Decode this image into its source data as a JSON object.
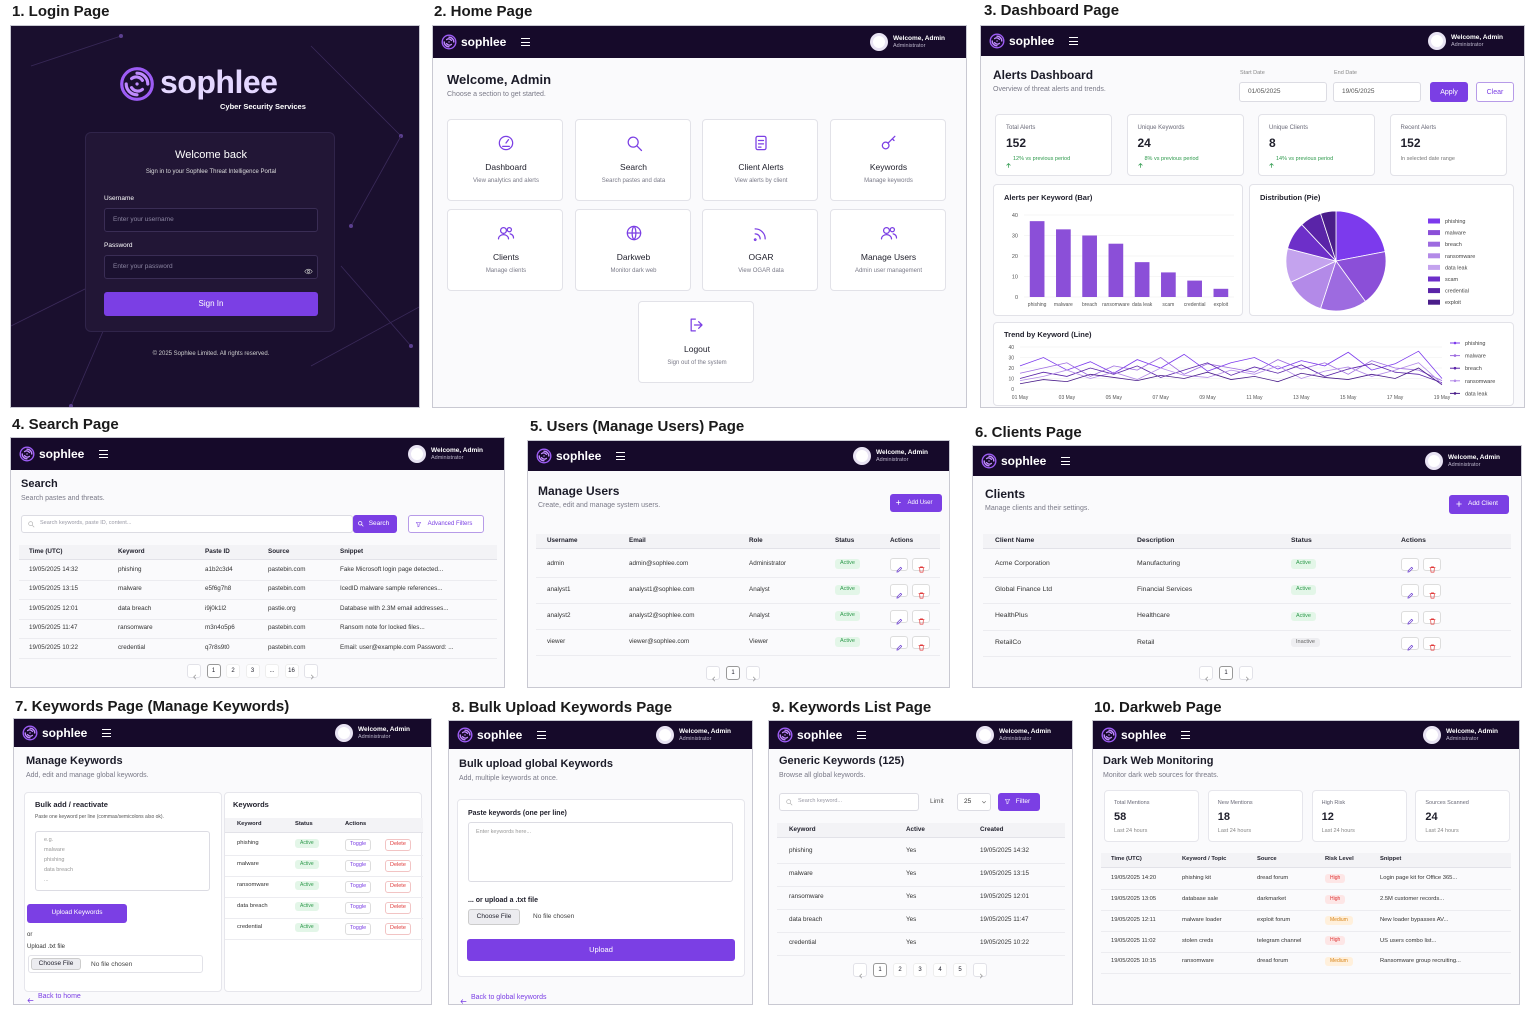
{
  "app_header": {
    "brand": "sophlee",
    "user": "Welcome, Admin",
    "role": "Administrator"
  },
  "badge_colors": {
    "Active": "green",
    "Inactive": "gray",
    "High": "red",
    "Medium": "orange"
  },
  "login": {
    "caption": "1. Login Page",
    "brand": "sophlee",
    "tagline": "Cyber Security Services",
    "title": "Welcome back",
    "subtitle": "Sign in to your Sophlee Threat Intelligence Portal",
    "username_label": "Username",
    "username_placeholder": "Enter your username",
    "password_label": "Password",
    "password_placeholder": "Enter your password",
    "button": "Sign In",
    "footer": "© 2025 Sophlee Limited. All rights reserved."
  },
  "home": {
    "caption": "2. Home Page",
    "title": "Welcome, Admin",
    "subtitle": "Choose a section to get started.",
    "cards": [
      {
        "title": "Dashboard",
        "desc": "View analytics and alerts"
      },
      {
        "title": "Search",
        "desc": "Search pastes and data"
      },
      {
        "title": "Client Alerts",
        "desc": "View alerts by client"
      },
      {
        "title": "Keywords",
        "desc": "Manage keywords"
      },
      {
        "title": "Clients",
        "desc": "Manage clients"
      },
      {
        "title": "Darkweb",
        "desc": "Monitor dark web"
      },
      {
        "title": "OGAR",
        "desc": "View OGAR data"
      },
      {
        "title": "Manage Users",
        "desc": "Admin user management"
      },
      {
        "title": "Logout",
        "desc": "Sign out of the system"
      }
    ]
  },
  "dashboard": {
    "caption": "3. Dashboard Page",
    "title": "Alerts Dashboard",
    "subtitle": "Overview of threat alerts and trends.",
    "start_label": "Start Date",
    "start_value": "01/05/2025",
    "end_label": "End Date",
    "end_value": "19/05/2025",
    "apply": "Apply",
    "clear": "Clear",
    "stats": [
      {
        "label": "Total Alerts",
        "value": 152,
        "note": "12% vs previous period",
        "trend": "up"
      },
      {
        "label": "Unique Keywords",
        "value": 24,
        "note": "8% vs previous period",
        "trend": "up"
      },
      {
        "label": "Unique Clients",
        "value": 8,
        "note": "14% vs previous period",
        "trend": "up"
      },
      {
        "label": "Recent Alerts",
        "value": 152,
        "note": "In selected date range"
      }
    ],
    "bar_chart": {
      "type": "bar",
      "title": "Alerts per Keyword (Bar)",
      "categories": [
        "phishing",
        "malware",
        "breach",
        "ransomware",
        "data leak",
        "scam",
        "credential",
        "exploit"
      ],
      "values": [
        37,
        33,
        30,
        26,
        17,
        12,
        8,
        4
      ],
      "color": "#8b4fd8",
      "ylim": [
        0,
        40
      ],
      "yticks": [
        0,
        10,
        20,
        30,
        40
      ],
      "grid": true
    },
    "pie_chart": {
      "type": "pie",
      "title": "Distribution (Pie)",
      "categories": [
        "phishing",
        "malware",
        "breach",
        "ransomware",
        "data leak",
        "scam",
        "credential",
        "exploit"
      ],
      "values": [
        22,
        18,
        15,
        13,
        11,
        9,
        7,
        5
      ],
      "colors": [
        "#7c3aed",
        "#8b4fd8",
        "#9d6be0",
        "#b38ae8",
        "#c4a3ee",
        "#6d2fc9",
        "#5a24a8",
        "#4a1d8a"
      ],
      "legend": "right"
    },
    "line_chart": {
      "type": "line",
      "title": "Trend by Keyword (Line)",
      "categories": [
        "01 May",
        null,
        "03 May",
        null,
        "05 May",
        null,
        "07 May",
        null,
        "09 May",
        null,
        "11 May",
        null,
        "13 May",
        null,
        "15 May",
        null,
        "17 May",
        null,
        "19 May"
      ],
      "ylim": [
        0,
        40
      ],
      "yticks": [
        0,
        10,
        20,
        30,
        40
      ],
      "grid": true,
      "legend": "right",
      "series": [
        {
          "name": "phishing",
          "color": "#7c3aed",
          "values": [
            22,
            30,
            18,
            26,
            15,
            28,
            20,
            33,
            17,
            25,
            30,
            19,
            27,
            22,
            35,
            18,
            24,
            36,
            10
          ]
        },
        {
          "name": "malware",
          "color": "#9d6be0",
          "values": [
            15,
            20,
            25,
            12,
            22,
            18,
            30,
            14,
            24,
            20,
            16,
            28,
            19,
            25,
            14,
            27,
            20,
            18,
            8
          ]
        },
        {
          "name": "breach",
          "color": "#5a24a8",
          "values": [
            10,
            16,
            12,
            20,
            14,
            22,
            11,
            18,
            25,
            13,
            21,
            15,
            23,
            12,
            19,
            24,
            16,
            14,
            6
          ]
        },
        {
          "name": "ransomware",
          "color": "#b38ae8",
          "values": [
            8,
            12,
            18,
            10,
            16,
            9,
            20,
            13,
            11,
            18,
            14,
            22,
            10,
            17,
            21,
            12,
            18,
            25,
            5
          ]
        },
        {
          "name": "data leak",
          "color": "#4a1d8a",
          "values": [
            5,
            9,
            7,
            14,
            11,
            8,
            13,
            10,
            16,
            9,
            12,
            7,
            15,
            11,
            9,
            14,
            10,
            20,
            4
          ]
        }
      ]
    }
  },
  "search": {
    "caption": "4. Search Page",
    "title": "Search",
    "subtitle": "Search pastes and threats.",
    "placeholder": "Search keywords, paste ID, content...",
    "button": "Search",
    "filters": "Advanced Filters",
    "columns": [
      "Time (UTC)",
      "Keyword",
      "Paste ID",
      "Source",
      "Snippet"
    ],
    "rows": [
      [
        "19/05/2025 14:32",
        "phishing",
        "a1b2c3d4",
        "pastebin.com",
        "Fake Microsoft login page detected..."
      ],
      [
        "19/05/2025 13:15",
        "malware",
        "e5f6g7h8",
        "pastebin.com",
        "IcedID malware sample references..."
      ],
      [
        "19/05/2025 12:01",
        "data breach",
        "i9j0k1l2",
        "pastie.org",
        "Database with 2.3M email addresses..."
      ],
      [
        "19/05/2025 11:47",
        "ransomware",
        "m3n4o5p6",
        "pastebin.com",
        "Ransom note for locked files..."
      ],
      [
        "19/05/2025 10:22",
        "credential",
        "q7r8s9t0",
        "pastebin.com",
        "Email: user@example.com Password: ..."
      ]
    ],
    "pages": [
      "1",
      "2",
      "3",
      "...",
      "16"
    ]
  },
  "users": {
    "caption": "5. Users (Manage Users) Page",
    "title": "Manage Users",
    "subtitle": "Create, edit and manage system users.",
    "add": "Add User",
    "columns": [
      "Username",
      "Email",
      "Role",
      "Status",
      "Actions"
    ],
    "rows": [
      [
        "admin",
        "admin@sophlee.com",
        "Administrator",
        "Active"
      ],
      [
        "analyst1",
        "analyst1@sophlee.com",
        "Analyst",
        "Active"
      ],
      [
        "analyst2",
        "analyst2@sophlee.com",
        "Analyst",
        "Active"
      ],
      [
        "viewer",
        "viewer@sophlee.com",
        "Viewer",
        "Active"
      ]
    ],
    "pages": [
      "1"
    ]
  },
  "clients": {
    "caption": "6. Clients Page",
    "title": "Clients",
    "subtitle": "Manage clients and their settings.",
    "add": "Add Client",
    "columns": [
      "Client Name",
      "Description",
      "Status",
      "Actions"
    ],
    "rows": [
      [
        "Acme Corporation",
        "Manufacturing",
        "Active"
      ],
      [
        "Global Finance Ltd",
        "Financial Services",
        "Active"
      ],
      [
        "HealthPlus",
        "Healthcare",
        "Active"
      ],
      [
        "RetailCo",
        "Retail",
        "Inactive"
      ]
    ],
    "pages": [
      "1"
    ]
  },
  "keywords": {
    "caption": "7. Keywords Page (Manage Keywords)",
    "title": "Manage Keywords",
    "subtitle": "Add, edit and manage global keywords.",
    "bulk_title": "Bulk add / reactivate",
    "bulk_hint": "Paste one keyword per line (commas/semicolons also ok).",
    "placeholder_lines": [
      "e.g.",
      "malware",
      "phishing",
      "data breach",
      "..."
    ],
    "upload_button": "Upload Keywords",
    "or": "or",
    "file_label": "Upload .txt file",
    "choose": "Choose File",
    "no_file": "No file chosen",
    "back": "Back to home",
    "list_title": "Keywords",
    "columns": [
      "Keyword",
      "Status",
      "Actions"
    ],
    "toggle": "Toggle",
    "delete": "Delete",
    "rows": [
      [
        "phishing",
        "Active"
      ],
      [
        "malware",
        "Active"
      ],
      [
        "ransomware",
        "Active"
      ],
      [
        "data breach",
        "Active"
      ],
      [
        "credential",
        "Active"
      ]
    ]
  },
  "bulk": {
    "caption": "8. Bulk Upload Keywords Page",
    "title": "Bulk upload global Keywords",
    "subtitle": "Add, multiple keywords at once.",
    "label": "Paste keywords (one per line)",
    "placeholder": "Enter keywords here...",
    "or_upload": "... or upload a .txt file",
    "choose": "Choose File",
    "no_file": "No file chosen",
    "button": "Upload",
    "back": "Back to global keywords"
  },
  "keyword_list": {
    "caption": "9. Keywords List Page",
    "title": "Generic Keywords (125)",
    "subtitle": "Browse all global keywords.",
    "placeholder": "Search keyword...",
    "limit_label": "Limit",
    "limit_value": "25",
    "filter": "Filter",
    "columns": [
      "Keyword",
      "Active",
      "Created"
    ],
    "rows": [
      [
        "phishing",
        "Yes",
        "19/05/2025 14:32"
      ],
      [
        "malware",
        "Yes",
        "19/05/2025 13:15"
      ],
      [
        "ransomware",
        "Yes",
        "19/05/2025 12:01"
      ],
      [
        "data breach",
        "Yes",
        "19/05/2025 11:47"
      ],
      [
        "credential",
        "Yes",
        "19/05/2025 10:22"
      ]
    ],
    "pages": [
      "1",
      "2",
      "3",
      "4",
      "5"
    ]
  },
  "darkweb": {
    "caption": "10. Darkweb Page",
    "title": "Dark Web Monitoring",
    "subtitle": "Monitor dark web sources for threats.",
    "stats": [
      {
        "label": "Total Mentions",
        "value": 58,
        "note": "Last 24 hours"
      },
      {
        "label": "New Mentions",
        "value": 18,
        "note": "Last 24 hours"
      },
      {
        "label": "High Risk",
        "value": 12,
        "note": "Last 24 hours"
      },
      {
        "label": "Sources Scanned",
        "value": 24,
        "note": "Last 24 hours"
      }
    ],
    "columns": [
      "Time (UTC)",
      "Keyword / Topic",
      "Source",
      "Risk Level",
      "Snippet"
    ],
    "rows": [
      [
        "19/05/2025 14:20",
        "phishing kit",
        "dread forum",
        "High",
        "Login page kit for Office 365..."
      ],
      [
        "19/05/2025 13:05",
        "database sale",
        "darkmarket",
        "High",
        "2.5M customer records..."
      ],
      [
        "19/05/2025 12:11",
        "malware loader",
        "exploit forum",
        "Medium",
        "New loader bypasses AV..."
      ],
      [
        "19/05/2025 11:02",
        "stolen creds",
        "telegram channel",
        "High",
        "US users combo list..."
      ],
      [
        "19/05/2025 10:15",
        "ransomware",
        "dread forum",
        "Medium",
        "Ransomware group recruiting..."
      ]
    ]
  }
}
